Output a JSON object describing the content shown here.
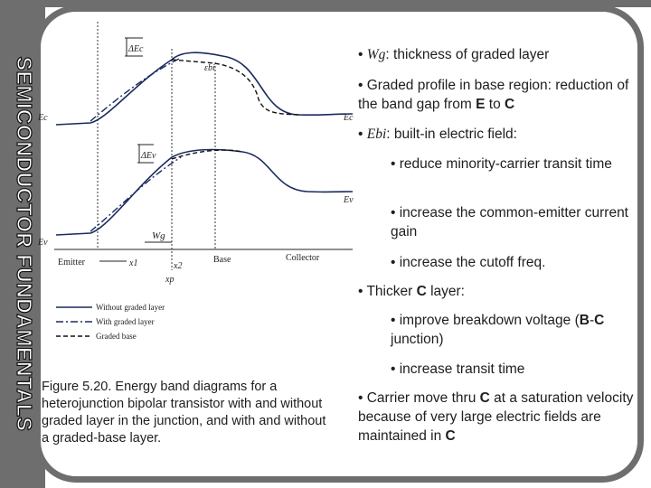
{
  "side_title": "SEMICONDUCTOR FUNDAMENTALS",
  "figure": {
    "labels": {
      "delta_ec": "ΔEc",
      "delta_ev": "ΔEv",
      "ec_left": "Ec",
      "ec_right": "Ec",
      "ev_left": "Ev",
      "ev_right": "Ev",
      "ebi": "εbi",
      "wg": "Wg",
      "x1": "x1",
      "x2": "x2",
      "xp": "xp",
      "emitter": "Emitter",
      "base": "Base",
      "collector": "Collector"
    },
    "legend": [
      {
        "label": "Without graded layer",
        "style": "solid"
      },
      {
        "label": "With graded layer",
        "style": "dashdot"
      },
      {
        "label": "Graded base",
        "style": "dashed"
      }
    ],
    "colors": {
      "solid": "#1a2a5e",
      "dashdot": "#1a2a5e",
      "dashed": "#111111"
    }
  },
  "caption": "Figure 5.20. Energy band diagrams for a heterojunction bipolar transistor with and without graded layer in the junction, and with and without a graded-base layer.",
  "bullets": {
    "b1": {
      "prefix": "• ",
      "math": "Wg",
      "rest": ": thickness of graded layer"
    },
    "b2": "• Graded profile in base region: reduction of the band gap from E to C",
    "b3": {
      "prefix": "• ",
      "math": "Ebi",
      "rest": ": built-in electric field:"
    },
    "b4": "• reduce minority-carrier transit time",
    "b5": "• increase the common-emitter current gain",
    "b6": "• increase the cutoff freq.",
    "b7": "• Thicker C layer:",
    "b8": "• improve breakdown voltage (B-C junction)",
    "b9": "• increase transit time",
    "b10": "• Carrier move thru C at a saturation velocity because of very large electric fields are maintained in C"
  }
}
